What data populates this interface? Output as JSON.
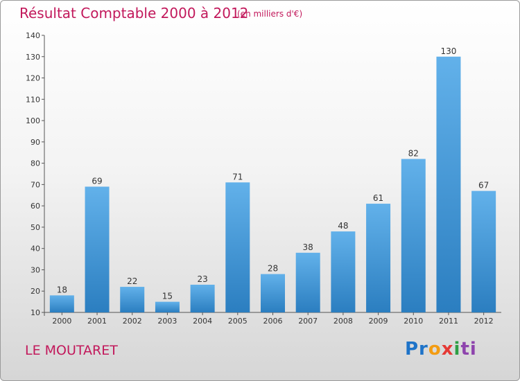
{
  "chart_data": {
    "type": "bar",
    "title": "Résultat Comptable 2000 à 2012",
    "subtitle": "(en milliers d'€)",
    "categories": [
      "2000",
      "2001",
      "2002",
      "2003",
      "2004",
      "2005",
      "2006",
      "2007",
      "2008",
      "2009",
      "2010",
      "2011",
      "2012"
    ],
    "values": [
      18,
      69,
      22,
      15,
      23,
      71,
      28,
      38,
      48,
      61,
      82,
      130,
      67
    ],
    "ylim": [
      10,
      140
    ],
    "yticks": [
      10,
      20,
      30,
      40,
      50,
      60,
      70,
      80,
      90,
      100,
      110,
      120,
      130,
      140
    ],
    "grid": false,
    "bar_color": "#3d93d6",
    "bar_color_top": "#62b1ea",
    "bar_color_bottom": "#2b7ec0"
  },
  "place_name": "LE MOUTARET",
  "logo": {
    "parts": [
      "Pr",
      "o",
      "x",
      "i",
      "ti"
    ]
  }
}
